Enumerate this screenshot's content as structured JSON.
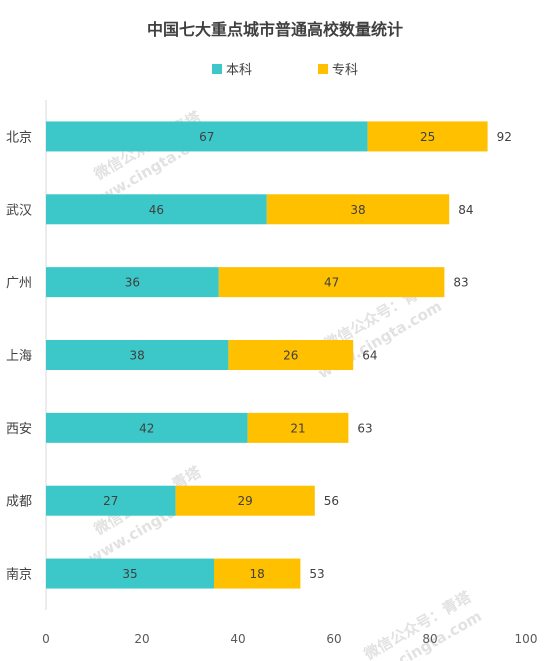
{
  "chart_data": {
    "type": "bar",
    "orientation": "horizontal",
    "stacked": true,
    "title": "中国七大重点城市普通高校数量统计",
    "categories": [
      "北京",
      "武汉",
      "广州",
      "上海",
      "西安",
      "成都",
      "南京"
    ],
    "series": [
      {
        "name": "本科",
        "color": "#3cc8c8",
        "values": [
          67,
          46,
          36,
          38,
          42,
          27,
          35
        ]
      },
      {
        "name": "专科",
        "color": "#ffc000",
        "values": [
          25,
          38,
          47,
          26,
          21,
          29,
          18
        ]
      }
    ],
    "totals": [
      92,
      84,
      83,
      64,
      63,
      56,
      53
    ],
    "xlim": [
      0,
      100
    ],
    "x_ticks": [
      0,
      20,
      40,
      60,
      80,
      100
    ],
    "legend_position": "top",
    "grid": false
  },
  "watermarks": [
    {
      "cn": "微信公众号：青塔",
      "url": "www.cingta.com"
    },
    {
      "cn": "微信公众号：青塔",
      "url": "www.cingta.com"
    },
    {
      "cn": "微信公众号：青塔",
      "url": "www.cingta.com"
    },
    {
      "cn": "微信公众号：青塔",
      "url": "www.cingta.com"
    }
  ]
}
